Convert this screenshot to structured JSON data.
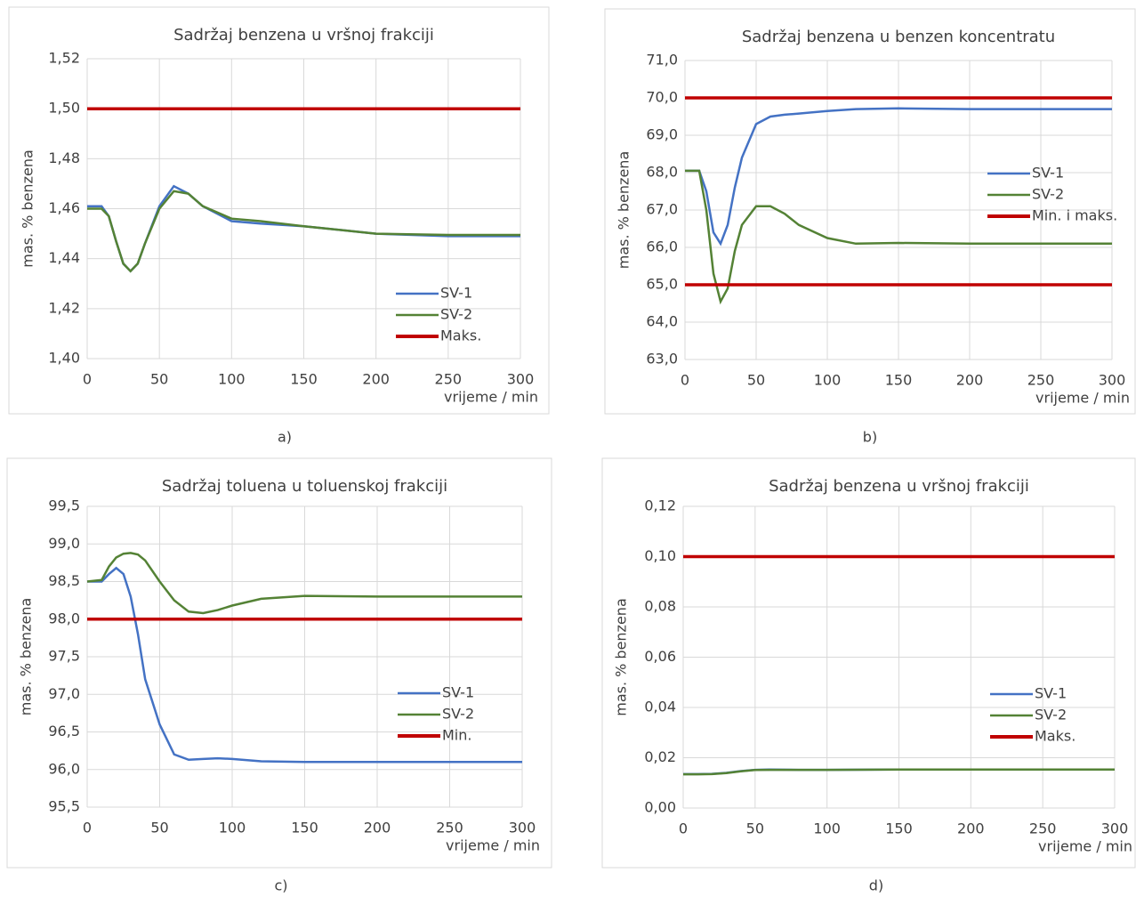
{
  "chart_data": [
    {
      "type": "line",
      "label": "a)",
      "title": "Sadržaj benzena u vršnoj frakciji",
      "xlabel": "vrijeme / min",
      "ylabel": "mas. % benzena",
      "x": [
        0,
        10,
        15,
        20,
        25,
        30,
        35,
        40,
        50,
        60,
        70,
        80,
        100,
        120,
        150,
        200,
        250,
        300
      ],
      "xlim": [
        0,
        300
      ],
      "xticks": [
        0,
        50,
        100,
        150,
        200,
        250,
        300
      ],
      "ylim": [
        1.4,
        1.52
      ],
      "yticks": [
        {
          "value": 1.4,
          "label": "1,40"
        },
        {
          "value": 1.42,
          "label": "1,42"
        },
        {
          "value": 1.44,
          "label": "1,44"
        },
        {
          "value": 1.46,
          "label": "1,46"
        },
        {
          "value": 1.48,
          "label": "1,48"
        },
        {
          "value": 1.5,
          "label": "1,50"
        },
        {
          "value": 1.52,
          "label": "1,52"
        }
      ],
      "grid": true,
      "legend": "lower right",
      "series": [
        {
          "name": "SV-1",
          "color": "#4472c4",
          "values": [
            1.461,
            1.461,
            1.457,
            1.447,
            1.438,
            1.435,
            1.438,
            1.446,
            1.461,
            1.469,
            1.466,
            1.461,
            1.455,
            1.454,
            1.453,
            1.45,
            1.449,
            1.449
          ]
        },
        {
          "name": "SV-2",
          "color": "#548235",
          "values": [
            1.46,
            1.46,
            1.457,
            1.447,
            1.438,
            1.435,
            1.438,
            1.446,
            1.46,
            1.467,
            1.466,
            1.461,
            1.456,
            1.455,
            1.453,
            1.45,
            1.4495,
            1.4495
          ]
        },
        {
          "name": "Maks.",
          "color": "#c00000",
          "values": [
            1.5,
            1.5,
            1.5,
            1.5,
            1.5,
            1.5,
            1.5,
            1.5,
            1.5,
            1.5,
            1.5,
            1.5,
            1.5,
            1.5,
            1.5,
            1.5,
            1.5,
            1.5
          ]
        }
      ]
    },
    {
      "type": "line",
      "label": "b)",
      "title": "Sadržaj benzena u benzen koncentratu",
      "xlabel": "vrijeme / min",
      "ylabel": "mas. % benzena",
      "x": [
        0,
        10,
        15,
        20,
        25,
        30,
        35,
        40,
        50,
        60,
        70,
        80,
        100,
        120,
        150,
        200,
        250,
        300
      ],
      "xlim": [
        0,
        300
      ],
      "xticks": [
        0,
        50,
        100,
        150,
        200,
        250,
        300
      ],
      "ylim": [
        63,
        71
      ],
      "yticks": [
        {
          "value": 63,
          "label": "63,0"
        },
        {
          "value": 64,
          "label": "64,0"
        },
        {
          "value": 65,
          "label": "65,0"
        },
        {
          "value": 66,
          "label": "66,0"
        },
        {
          "value": 67,
          "label": "67,0"
        },
        {
          "value": 68,
          "label": "68,0"
        },
        {
          "value": 69,
          "label": "69,0"
        },
        {
          "value": 70,
          "label": "70,0"
        },
        {
          "value": 71,
          "label": "71,0"
        }
      ],
      "grid": true,
      "legend": "right",
      "series": [
        {
          "name": "SV-1",
          "color": "#4472c4",
          "values": [
            68.05,
            68.05,
            67.5,
            66.4,
            66.1,
            66.6,
            67.6,
            68.4,
            69.3,
            69.5,
            69.55,
            69.58,
            69.65,
            69.7,
            69.72,
            69.7,
            69.7,
            69.7
          ]
        },
        {
          "name": "SV-2",
          "color": "#548235",
          "values": [
            68.05,
            68.05,
            67.0,
            65.3,
            64.55,
            64.9,
            65.9,
            66.6,
            67.1,
            67.1,
            66.9,
            66.6,
            66.25,
            66.1,
            66.12,
            66.1,
            66.1,
            66.1
          ]
        },
        {
          "name": "Min. i maks.",
          "color": "#c00000",
          "values": [
            70,
            70,
            70,
            70,
            70,
            70,
            70,
            70,
            70,
            70,
            70,
            70,
            70,
            70,
            70,
            70,
            70,
            70
          ]
        },
        {
          "color": "#c00000",
          "values": [
            65,
            65,
            65,
            65,
            65,
            65,
            65,
            65,
            65,
            65,
            65,
            65,
            65,
            65,
            65,
            65,
            65,
            65
          ]
        }
      ]
    },
    {
      "type": "line",
      "label": "c)",
      "title": "Sadržaj toluena u toluenskoj frakciji",
      "xlabel": "vrijeme / min",
      "ylabel": "mas. % benzena",
      "x": [
        0,
        10,
        15,
        20,
        25,
        30,
        35,
        40,
        50,
        60,
        70,
        80,
        90,
        100,
        120,
        150,
        200,
        250,
        300
      ],
      "xlim": [
        0,
        300
      ],
      "xticks": [
        0,
        50,
        100,
        150,
        200,
        250,
        300
      ],
      "ylim": [
        95.5,
        99.5
      ],
      "yticks": [
        {
          "value": 95.5,
          "label": "95,5"
        },
        {
          "value": 96,
          "label": "96,0"
        },
        {
          "value": 96.5,
          "label": "96,5"
        },
        {
          "value": 97,
          "label": "97,0"
        },
        {
          "value": 97.5,
          "label": "97,5"
        },
        {
          "value": 98,
          "label": "98,0"
        },
        {
          "value": 98.5,
          "label": "98,5"
        },
        {
          "value": 99,
          "label": "99,0"
        },
        {
          "value": 99.5,
          "label": "99,5"
        }
      ],
      "grid": true,
      "legend": "right",
      "series": [
        {
          "name": "SV-1",
          "color": "#4472c4",
          "values": [
            98.5,
            98.5,
            98.6,
            98.68,
            98.6,
            98.3,
            97.8,
            97.2,
            96.6,
            96.2,
            96.13,
            96.14,
            96.15,
            96.14,
            96.11,
            96.1,
            96.1,
            96.1,
            96.1
          ]
        },
        {
          "name": "SV-2",
          "color": "#548235",
          "values": [
            98.5,
            98.52,
            98.7,
            98.82,
            98.87,
            98.88,
            98.86,
            98.78,
            98.5,
            98.25,
            98.1,
            98.08,
            98.12,
            98.18,
            98.27,
            98.31,
            98.3,
            98.3,
            98.3
          ]
        },
        {
          "name": "Min.",
          "color": "#c00000",
          "values": [
            98,
            98,
            98,
            98,
            98,
            98,
            98,
            98,
            98,
            98,
            98,
            98,
            98,
            98,
            98,
            98,
            98,
            98,
            98
          ]
        }
      ]
    },
    {
      "type": "line",
      "label": "d)",
      "title": "Sadržaj benzena u vršnoj frakciji",
      "xlabel": "vrijeme / min",
      "ylabel": "mas. % benzena",
      "x": [
        0,
        10,
        20,
        30,
        40,
        50,
        60,
        80,
        100,
        150,
        200,
        250,
        300
      ],
      "xlim": [
        0,
        300
      ],
      "xticks": [
        0,
        50,
        100,
        150,
        200,
        250,
        300
      ],
      "ylim": [
        0,
        0.12
      ],
      "yticks": [
        {
          "value": 0,
          "label": "0,00"
        },
        {
          "value": 0.02,
          "label": "0,02"
        },
        {
          "value": 0.04,
          "label": "0,04"
        },
        {
          "value": 0.06,
          "label": "0,06"
        },
        {
          "value": 0.08,
          "label": "0,08"
        },
        {
          "value": 0.1,
          "label": "0,10"
        },
        {
          "value": 0.12,
          "label": "0,12"
        }
      ],
      "grid": true,
      "legend": "lower right",
      "series": [
        {
          "name": "SV-1",
          "color": "#4472c4",
          "values": [
            0.0135,
            0.0135,
            0.0136,
            0.014,
            0.0147,
            0.0152,
            0.0153,
            0.0152,
            0.0152,
            0.0153,
            0.0153,
            0.0153,
            0.0153
          ]
        },
        {
          "name": "SV-2",
          "color": "#548235",
          "values": [
            0.0134,
            0.0134,
            0.0135,
            0.0139,
            0.0146,
            0.0151,
            0.0152,
            0.0152,
            0.0152,
            0.0153,
            0.0153,
            0.0153,
            0.0153
          ]
        },
        {
          "name": "Maks.",
          "color": "#c00000",
          "values": [
            0.1,
            0.1,
            0.1,
            0.1,
            0.1,
            0.1,
            0.1,
            0.1,
            0.1,
            0.1,
            0.1,
            0.1,
            0.1
          ]
        }
      ]
    }
  ]
}
